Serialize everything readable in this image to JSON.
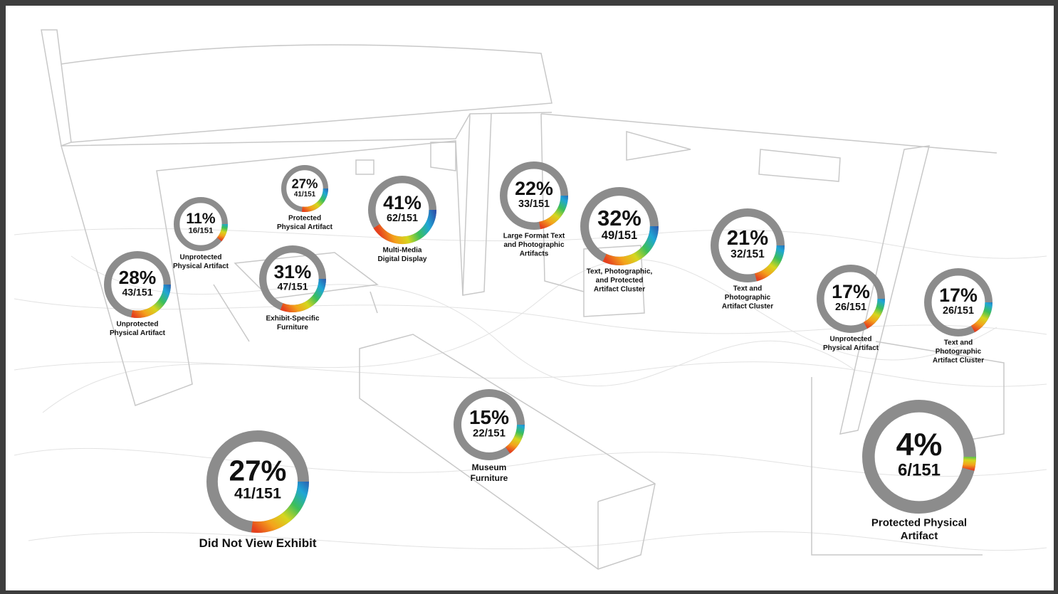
{
  "rings": [
    {
      "value": 28,
      "value_label": "28%",
      "count": "43/151",
      "label": [
        "Unprotected",
        "Physical Artifact"
      ]
    },
    {
      "value": 11,
      "value_label": "11%",
      "count": "16/151",
      "label": [
        "Unprotected",
        "Physical Artifact"
      ]
    },
    {
      "value": 27,
      "value_label": "27%",
      "count": "41/151",
      "label": [
        "Protected",
        "Physical Artifact"
      ]
    },
    {
      "value": 31,
      "value_label": "31%",
      "count": "47/151",
      "label": [
        "Exhibit-Specific",
        "Furniture"
      ]
    },
    {
      "value": 41,
      "value_label": "41%",
      "count": "62/151",
      "label": [
        "Multi-Media",
        "Digital Display"
      ]
    },
    {
      "value": 22,
      "value_label": "22%",
      "count": "33/151",
      "label": [
        "Large Format Text",
        "and Photographic",
        "Artifacts"
      ]
    },
    {
      "value": 32,
      "value_label": "32%",
      "count": "49/151",
      "label": [
        "Text, Photographic,",
        "and Protected",
        "Artifact Cluster"
      ]
    },
    {
      "value": 21,
      "value_label": "21%",
      "count": "32/151",
      "label": [
        "Text and",
        "Photographic",
        "Artifact Cluster"
      ]
    },
    {
      "value": 17,
      "value_label": "17%",
      "count": "26/151",
      "label": [
        "Unprotected",
        "Physical Artifact"
      ]
    },
    {
      "value": 17,
      "value_label": "17%",
      "count": "26/151",
      "label": [
        "Text and",
        "Photographic",
        "Artifact Cluster"
      ]
    },
    {
      "value": 15,
      "value_label": "15%",
      "count": "22/151",
      "label": [
        "Museum",
        "Furniture"
      ]
    },
    {
      "value": 27,
      "value_label": "27%",
      "count": "41/151",
      "label": [
        "Did Not View Exhibit"
      ]
    },
    {
      "value": 4,
      "value_label": "4%",
      "count": "6/151",
      "label": [
        "Protected Physical",
        "Artifact"
      ]
    }
  ]
}
